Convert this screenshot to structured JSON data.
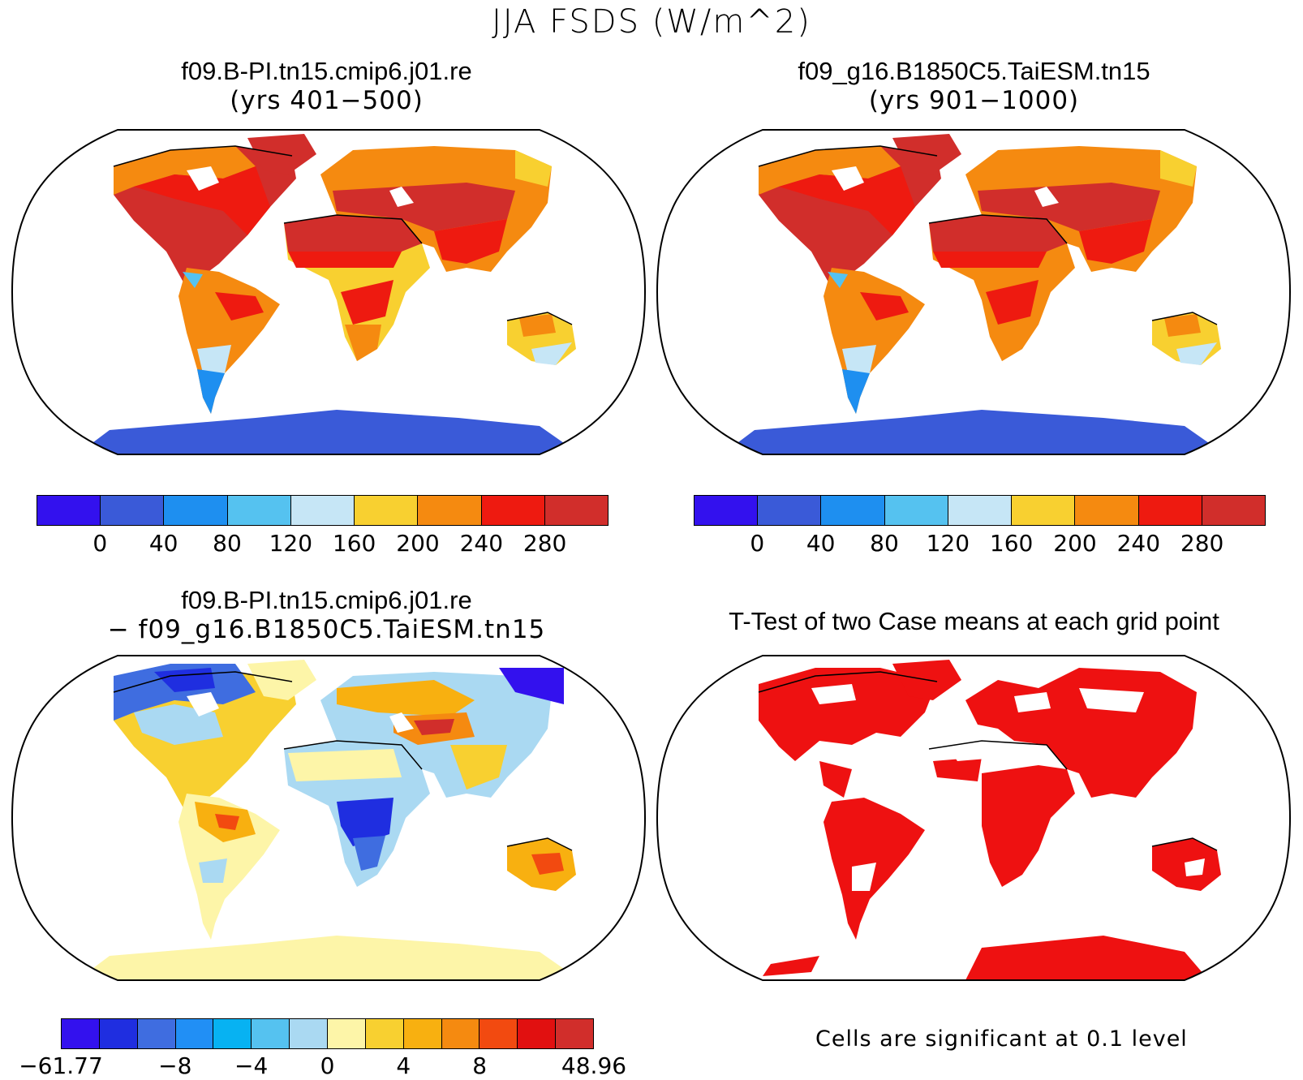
{
  "title": "JJA FSDS (W/m^2)",
  "panels": {
    "case1": {
      "title": "f09.B-PI.tn15.cmip6.j01.re",
      "subtitle": "(yrs 401−500)"
    },
    "case2": {
      "title": "f09_g16.B1850C5.TaiESM.tn15",
      "subtitle": "(yrs 901−1000)"
    },
    "diff": {
      "title": "f09.B-PI.tn15.cmip6.j01.re",
      "subtitle": "− f09_g16.B1850C5.TaiESM.tn15"
    },
    "ttest": {
      "title": "T-Test of two Case means at each grid point",
      "note": "Cells are significant at 0.1 level"
    }
  },
  "colorbars": {
    "absolute": {
      "colors": [
        "#3311ee",
        "#3a5ad8",
        "#1e8ff0",
        "#55c2f0",
        "#c6e6f6",
        "#f8d030",
        "#f58a10",
        "#ee1a10",
        "#d12e2b"
      ],
      "ticks": [
        "0",
        "40",
        "80",
        "120",
        "160",
        "200",
        "240",
        "280"
      ]
    },
    "difference": {
      "colors": [
        "#3311ee",
        "#1f2ee0",
        "#3f6de0",
        "#218ff5",
        "#07b2f2",
        "#55c2f0",
        "#aad9f2",
        "#fdf5a8",
        "#f8d030",
        "#f8b010",
        "#f58a10",
        "#f24a10",
        "#e11010",
        "#d12e2b"
      ],
      "ticks": [
        "−61.77",
        "−8",
        "−4",
        "0",
        "4",
        "8",
        "48.96"
      ]
    }
  },
  "colors": {
    "signif": "#ee1111",
    "ocean": "#ffffff",
    "coast": "#000000"
  }
}
